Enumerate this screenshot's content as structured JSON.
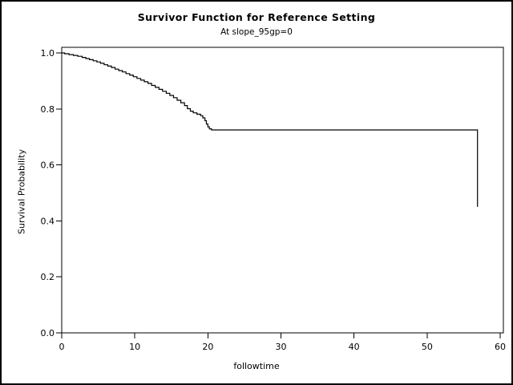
{
  "title": "Survivor Function for Reference Setting",
  "subtitle": "At slope_95gp=0",
  "chart_data": {
    "type": "line",
    "step": "post",
    "title": "Survivor Function for Reference Setting",
    "subtitle": "At slope_95gp=0",
    "xlabel": "followtime",
    "ylabel": "Survival Probability",
    "xlim": [
      0,
      60
    ],
    "ylim": [
      0.0,
      1.0
    ],
    "x_ticks": [
      0,
      10,
      20,
      30,
      40,
      50,
      60
    ],
    "x_tick_labels": [
      "0",
      "10",
      "20",
      "30",
      "40",
      "50",
      "60"
    ],
    "y_ticks": [
      0.0,
      0.2,
      0.4,
      0.6,
      0.8,
      1.0
    ],
    "y_tick_labels": [
      "0.0",
      "0.2",
      "0.4",
      "0.6",
      "0.8",
      "1.0"
    ],
    "grid": false,
    "legend": "none",
    "line_color": "#000000",
    "series": [
      {
        "name": "Survivor Function",
        "points": [
          [
            0.0,
            1.0
          ],
          [
            0.4,
            0.997
          ],
          [
            1.0,
            0.994
          ],
          [
            1.6,
            0.991
          ],
          [
            2.2,
            0.988
          ],
          [
            2.8,
            0.984
          ],
          [
            3.3,
            0.98
          ],
          [
            3.8,
            0.976
          ],
          [
            4.3,
            0.972
          ],
          [
            4.8,
            0.968
          ],
          [
            5.3,
            0.963
          ],
          [
            5.8,
            0.958
          ],
          [
            6.3,
            0.953
          ],
          [
            6.8,
            0.948
          ],
          [
            7.3,
            0.942
          ],
          [
            7.8,
            0.937
          ],
          [
            8.3,
            0.932
          ],
          [
            8.8,
            0.926
          ],
          [
            9.3,
            0.921
          ],
          [
            9.8,
            0.915
          ],
          [
            10.3,
            0.909
          ],
          [
            10.8,
            0.903
          ],
          [
            11.3,
            0.897
          ],
          [
            11.8,
            0.891
          ],
          [
            12.3,
            0.884
          ],
          [
            12.8,
            0.877
          ],
          [
            13.3,
            0.87
          ],
          [
            13.8,
            0.863
          ],
          [
            14.3,
            0.856
          ],
          [
            14.8,
            0.848
          ],
          [
            15.3,
            0.84
          ],
          [
            15.8,
            0.831
          ],
          [
            16.3,
            0.822
          ],
          [
            16.8,
            0.812
          ],
          [
            17.2,
            0.801
          ],
          [
            17.6,
            0.792
          ],
          [
            18.0,
            0.786
          ],
          [
            18.5,
            0.781
          ],
          [
            19.0,
            0.776
          ],
          [
            19.3,
            0.768
          ],
          [
            19.6,
            0.758
          ],
          [
            19.8,
            0.746
          ],
          [
            20.0,
            0.736
          ],
          [
            20.2,
            0.729
          ],
          [
            20.5,
            0.725
          ],
          [
            56.9,
            0.45
          ]
        ]
      }
    ]
  },
  "colors": {
    "foreground": "#000000",
    "background": "#ffffff"
  }
}
